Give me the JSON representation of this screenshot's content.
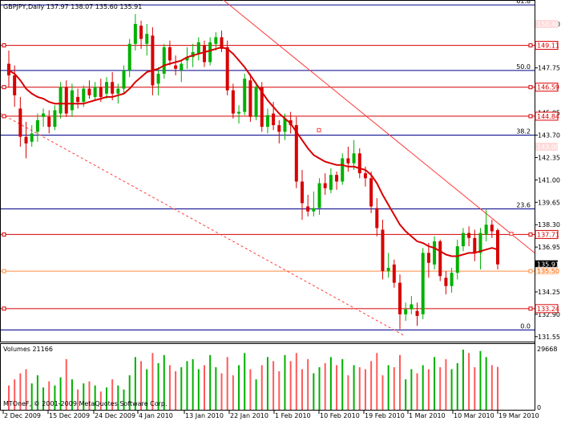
{
  "header": {
    "symbol_line": "GBPJPY,Daily  137.97 138.07 135.60 135.91"
  },
  "volume_panel": {
    "title": "Volumes 21166",
    "max_label": "29668",
    "zero_label": "0"
  },
  "copyright": "MTOneF, © 2001-2009 MetaQuotes Software Corp.",
  "fib_labels": [
    {
      "text": "61.8",
      "price": 151.55
    },
    {
      "text": "50.0",
      "price": 147.6
    },
    {
      "text": "38.2",
      "price": 143.7
    },
    {
      "text": "23.6",
      "price": 139.25
    },
    {
      "text": "0.0",
      "price": 131.95
    }
  ],
  "price_ticks": [
    "150.40",
    "147.75",
    "145.05",
    "143.70",
    "142.35",
    "141.00",
    "139.65",
    "138.30",
    "136.95",
    "134.25",
    "132.90",
    "131.55"
  ],
  "price_badges": [
    {
      "text": "150.40",
      "price": 150.4,
      "bg": "#ffdada",
      "fg": "#ffffff"
    },
    {
      "text": "149.11",
      "price": 149.11,
      "bg": "#ffffff",
      "fg": "#d80000",
      "border": "#d80000"
    },
    {
      "text": "146.59",
      "price": 146.59,
      "bg": "#ffffff",
      "fg": "#d80000",
      "border": "#d80000"
    },
    {
      "text": "144.84",
      "price": 144.84,
      "bg": "#ffffff",
      "fg": "#d80000",
      "border": "#d80000"
    },
    {
      "text": "143.00",
      "price": 143.0,
      "bg": "#ffdada",
      "fg": "#ffffff"
    },
    {
      "text": "137.71",
      "price": 137.71,
      "bg": "#ffffff",
      "fg": "#d80000",
      "border": "#d80000"
    },
    {
      "text": "135.91",
      "price": 135.91,
      "bg": "#000000",
      "fg": "#ffffff"
    },
    {
      "text": "135.50",
      "price": 135.5,
      "bg": "#ffe6d6",
      "fg": "#ff6a00"
    },
    {
      "text": "133.24",
      "price": 133.24,
      "bg": "#ffffff",
      "fg": "#d80000",
      "border": "#d80000"
    }
  ],
  "date_labels": [
    "2 Dec 2009",
    "15 Dec 2009",
    "24 Dec 2009",
    "4 Jan 2010",
    "13 Jan 2010",
    "22 Jan 2010",
    "1 Feb 2010",
    "10 Feb 2010",
    "19 Feb 2010",
    "1 Mar 2010",
    "10 Mar 2010",
    "19 Mar 2010"
  ],
  "colors": {
    "bull": "#00b000",
    "bear": "#d80000",
    "ma": "#d80000",
    "fib": "#00008b",
    "hline": "#d80000",
    "trend": "#ff3b3b",
    "vol_bull": "#00b000",
    "vol_bear": "#ff5a5a"
  },
  "chart_data": {
    "type": "candlestick",
    "symbol": "GBPJPY",
    "timeframe": "Daily",
    "ylim": [
      131.3,
      151.7
    ],
    "candles": [
      {
        "o": 148.0,
        "h": 148.8,
        "l": 146.6,
        "c": 147.3
      },
      {
        "o": 147.3,
        "h": 147.9,
        "l": 145.4,
        "c": 146.1
      },
      {
        "o": 145.3,
        "h": 146.0,
        "l": 143.0,
        "c": 143.6
      },
      {
        "o": 143.6,
        "h": 144.5,
        "l": 142.3,
        "c": 143.2
      },
      {
        "o": 143.3,
        "h": 144.3,
        "l": 143.0,
        "c": 143.8
      },
      {
        "o": 143.9,
        "h": 145.0,
        "l": 143.3,
        "c": 144.6
      },
      {
        "o": 144.8,
        "h": 145.3,
        "l": 144.2,
        "c": 145.0
      },
      {
        "o": 144.8,
        "h": 145.2,
        "l": 143.8,
        "c": 144.2
      },
      {
        "o": 144.2,
        "h": 145.5,
        "l": 144.0,
        "c": 145.2
      },
      {
        "o": 145.0,
        "h": 146.9,
        "l": 144.7,
        "c": 146.6
      },
      {
        "o": 146.6,
        "h": 147.0,
        "l": 144.8,
        "c": 145.0
      },
      {
        "o": 145.2,
        "h": 146.8,
        "l": 144.8,
        "c": 146.4
      },
      {
        "o": 146.0,
        "h": 146.5,
        "l": 145.3,
        "c": 145.7
      },
      {
        "o": 145.7,
        "h": 146.7,
        "l": 145.4,
        "c": 146.5
      },
      {
        "o": 146.5,
        "h": 147.0,
        "l": 145.9,
        "c": 146.1
      },
      {
        "o": 146.0,
        "h": 146.9,
        "l": 145.8,
        "c": 146.6
      },
      {
        "o": 146.6,
        "h": 147.1,
        "l": 145.7,
        "c": 146.0
      },
      {
        "o": 146.2,
        "h": 147.2,
        "l": 145.9,
        "c": 146.9
      },
      {
        "o": 146.9,
        "h": 147.5,
        "l": 145.8,
        "c": 146.2
      },
      {
        "o": 146.2,
        "h": 146.8,
        "l": 145.6,
        "c": 146.5
      },
      {
        "o": 146.5,
        "h": 147.9,
        "l": 146.2,
        "c": 147.6
      },
      {
        "o": 147.6,
        "h": 149.5,
        "l": 147.2,
        "c": 149.2
      },
      {
        "o": 149.2,
        "h": 151.0,
        "l": 148.8,
        "c": 150.4
      },
      {
        "o": 150.3,
        "h": 150.6,
        "l": 148.9,
        "c": 149.5
      },
      {
        "o": 149.2,
        "h": 150.4,
        "l": 148.5,
        "c": 149.8
      },
      {
        "o": 149.7,
        "h": 150.2,
        "l": 146.1,
        "c": 146.7
      },
      {
        "o": 146.8,
        "h": 147.8,
        "l": 146.1,
        "c": 147.4
      },
      {
        "o": 147.4,
        "h": 149.2,
        "l": 147.1,
        "c": 149.0
      },
      {
        "o": 149.0,
        "h": 149.4,
        "l": 147.9,
        "c": 148.2
      },
      {
        "o": 147.9,
        "h": 148.5,
        "l": 147.3,
        "c": 147.7
      },
      {
        "o": 147.6,
        "h": 148.2,
        "l": 146.9,
        "c": 148.0
      },
      {
        "o": 148.2,
        "h": 149.0,
        "l": 147.7,
        "c": 148.4
      },
      {
        "o": 148.4,
        "h": 149.2,
        "l": 147.8,
        "c": 148.7
      },
      {
        "o": 148.6,
        "h": 149.6,
        "l": 148.2,
        "c": 149.3
      },
      {
        "o": 149.1,
        "h": 149.4,
        "l": 147.8,
        "c": 148.1
      },
      {
        "o": 148.1,
        "h": 149.6,
        "l": 147.9,
        "c": 149.3
      },
      {
        "o": 149.2,
        "h": 149.9,
        "l": 148.8,
        "c": 149.6
      },
      {
        "o": 149.6,
        "h": 150.0,
        "l": 148.7,
        "c": 148.9
      },
      {
        "o": 149.0,
        "h": 149.4,
        "l": 146.1,
        "c": 146.4
      },
      {
        "o": 146.4,
        "h": 146.8,
        "l": 144.7,
        "c": 145.0
      },
      {
        "o": 145.0,
        "h": 145.5,
        "l": 144.4,
        "c": 145.1
      },
      {
        "o": 145.1,
        "h": 147.4,
        "l": 144.9,
        "c": 147.1
      },
      {
        "o": 147.0,
        "h": 147.4,
        "l": 144.5,
        "c": 144.8
      },
      {
        "o": 144.8,
        "h": 146.9,
        "l": 144.6,
        "c": 146.6
      },
      {
        "o": 146.6,
        "h": 146.9,
        "l": 143.9,
        "c": 144.2
      },
      {
        "o": 144.2,
        "h": 145.3,
        "l": 143.8,
        "c": 144.9
      },
      {
        "o": 145.0,
        "h": 145.7,
        "l": 144.0,
        "c": 144.3
      },
      {
        "o": 144.3,
        "h": 144.6,
        "l": 143.2,
        "c": 143.9
      },
      {
        "o": 143.9,
        "h": 145.0,
        "l": 143.4,
        "c": 144.7
      },
      {
        "o": 144.6,
        "h": 145.1,
        "l": 143.8,
        "c": 144.3
      },
      {
        "o": 144.3,
        "h": 144.8,
        "l": 140.5,
        "c": 140.9
      },
      {
        "o": 140.9,
        "h": 141.6,
        "l": 138.6,
        "c": 139.6
      },
      {
        "o": 139.4,
        "h": 140.1,
        "l": 138.8,
        "c": 139.1
      },
      {
        "o": 139.1,
        "h": 140.3,
        "l": 138.8,
        "c": 139.3
      },
      {
        "o": 139.3,
        "h": 141.1,
        "l": 138.9,
        "c": 140.8
      },
      {
        "o": 140.8,
        "h": 141.4,
        "l": 140.1,
        "c": 140.5
      },
      {
        "o": 140.4,
        "h": 141.7,
        "l": 140.2,
        "c": 141.3
      },
      {
        "o": 141.3,
        "h": 141.5,
        "l": 140.4,
        "c": 140.9
      },
      {
        "o": 140.9,
        "h": 142.6,
        "l": 140.7,
        "c": 142.3
      },
      {
        "o": 142.3,
        "h": 143.0,
        "l": 141.5,
        "c": 142.0
      },
      {
        "o": 142.0,
        "h": 143.4,
        "l": 141.6,
        "c": 142.6
      },
      {
        "o": 142.6,
        "h": 142.9,
        "l": 141.1,
        "c": 141.4
      },
      {
        "o": 141.4,
        "h": 141.8,
        "l": 140.6,
        "c": 141.1
      },
      {
        "o": 141.1,
        "h": 141.5,
        "l": 139.0,
        "c": 139.4
      },
      {
        "o": 139.3,
        "h": 139.9,
        "l": 137.6,
        "c": 138.1
      },
      {
        "o": 138.0,
        "h": 138.6,
        "l": 135.0,
        "c": 135.5
      },
      {
        "o": 135.5,
        "h": 136.6,
        "l": 135.1,
        "c": 135.7
      },
      {
        "o": 135.9,
        "h": 136.2,
        "l": 134.5,
        "c": 134.8
      },
      {
        "o": 134.8,
        "h": 135.3,
        "l": 132.0,
        "c": 132.9
      },
      {
        "o": 132.9,
        "h": 133.6,
        "l": 132.5,
        "c": 133.2
      },
      {
        "o": 133.2,
        "h": 134.0,
        "l": 132.9,
        "c": 133.5
      },
      {
        "o": 133.1,
        "h": 133.6,
        "l": 132.2,
        "c": 132.8
      },
      {
        "o": 132.9,
        "h": 136.9,
        "l": 132.6,
        "c": 136.6
      },
      {
        "o": 136.6,
        "h": 137.2,
        "l": 135.1,
        "c": 136.0
      },
      {
        "o": 135.9,
        "h": 137.6,
        "l": 135.6,
        "c": 137.3
      },
      {
        "o": 137.3,
        "h": 137.4,
        "l": 134.9,
        "c": 135.2
      },
      {
        "o": 135.1,
        "h": 135.5,
        "l": 134.1,
        "c": 134.6
      },
      {
        "o": 134.6,
        "h": 135.7,
        "l": 134.2,
        "c": 135.4
      },
      {
        "o": 135.4,
        "h": 137.4,
        "l": 135.0,
        "c": 137.0
      },
      {
        "o": 137.0,
        "h": 138.1,
        "l": 136.7,
        "c": 137.8
      },
      {
        "o": 137.8,
        "h": 138.2,
        "l": 137.0,
        "c": 137.5
      },
      {
        "o": 137.5,
        "h": 138.0,
        "l": 136.1,
        "c": 136.6
      },
      {
        "o": 136.6,
        "h": 138.1,
        "l": 135.6,
        "c": 137.8
      },
      {
        "o": 137.7,
        "h": 139.2,
        "l": 137.3,
        "c": 138.3
      },
      {
        "o": 138.3,
        "h": 138.6,
        "l": 137.5,
        "c": 137.9
      },
      {
        "o": 137.97,
        "h": 138.07,
        "l": 135.6,
        "c": 135.91
      }
    ],
    "moving_average": [
      147.6,
      147.4,
      147.0,
      146.5,
      146.2,
      146.0,
      145.9,
      145.7,
      145.6,
      145.6,
      145.6,
      145.6,
      145.6,
      145.6,
      145.7,
      145.8,
      145.9,
      146.0,
      146.0,
      146.1,
      146.2,
      146.5,
      146.9,
      147.2,
      147.5,
      147.6,
      147.7,
      147.9,
      148.0,
      148.1,
      148.2,
      148.4,
      148.5,
      148.6,
      148.7,
      148.8,
      148.9,
      149.0,
      148.9,
      148.6,
      148.2,
      147.8,
      147.3,
      146.8,
      146.3,
      145.8,
      145.4,
      145.0,
      144.7,
      144.4,
      143.9,
      143.4,
      142.9,
      142.5,
      142.3,
      142.1,
      142.0,
      141.9,
      141.9,
      141.8,
      141.8,
      141.7,
      141.6,
      141.3,
      140.8,
      140.1,
      139.5,
      138.9,
      138.3,
      137.9,
      137.6,
      137.3,
      137.2,
      137.0,
      136.9,
      136.7,
      136.5,
      136.4,
      136.4,
      136.5,
      136.6,
      136.6,
      136.7,
      136.8,
      136.9,
      136.8
    ],
    "volumes": [
      12000,
      15000,
      18000,
      20000,
      13000,
      17000,
      11000,
      14000,
      12000,
      16000,
      25000,
      15000,
      10000,
      13000,
      14000,
      12000,
      9000,
      11000,
      15000,
      12000,
      10000,
      17000,
      26000,
      24000,
      20000,
      28000,
      23000,
      27000,
      22000,
      19000,
      21000,
      24000,
      25000,
      20000,
      22000,
      27000,
      21000,
      18000,
      26000,
      17000,
      22000,
      28000,
      20000,
      15000,
      22000,
      26000,
      24000,
      19000,
      27000,
      24000,
      28000,
      20000,
      25000,
      18000,
      21000,
      23000,
      26000,
      22000,
      25000,
      17000,
      22000,
      21000,
      20000,
      24000,
      28000,
      17000,
      22000,
      21000,
      27000,
      15000,
      20000,
      18000,
      22000,
      20000,
      26000,
      21000,
      25000,
      20000,
      23000,
      29668,
      28000,
      21000,
      29000,
      26000,
      22000,
      21166
    ],
    "fibonacci_levels": [
      {
        "label": "61.8",
        "price": 151.55
      },
      {
        "label": "50.0",
        "price": 147.6
      },
      {
        "label": "38.2",
        "price": 143.7
      },
      {
        "label": "23.6",
        "price": 139.25
      },
      {
        "label": "0.0",
        "price": 131.95
      }
    ],
    "horizontal_lines": [
      149.11,
      146.59,
      144.84,
      137.71,
      133.24,
      135.5
    ],
    "trendline_solid": {
      "from": {
        "x": 0,
        "price": 155.6
      },
      "to": {
        "x": 1,
        "price": 136.6
      }
    },
    "trendline_dashed": {
      "from": {
        "x": 0,
        "price": 145.0
      },
      "to": {
        "x": 0.72,
        "price": 131.6
      }
    },
    "volume_ylim": [
      0,
      29668
    ],
    "x_labels": [
      "2 Dec 2009",
      "15 Dec 2009",
      "24 Dec 2009",
      "4 Jan 2010",
      "13 Jan 2010",
      "22 Jan 2010",
      "1 Feb 2010",
      "10 Feb 2010",
      "19 Feb 2010",
      "1 Mar 2010",
      "10 Mar 2010",
      "19 Mar 2010"
    ],
    "price_ticks": [
      150.4,
      147.75,
      145.05,
      143.7,
      142.35,
      141.0,
      139.65,
      138.3,
      136.95,
      134.25,
      132.9,
      131.55
    ]
  }
}
